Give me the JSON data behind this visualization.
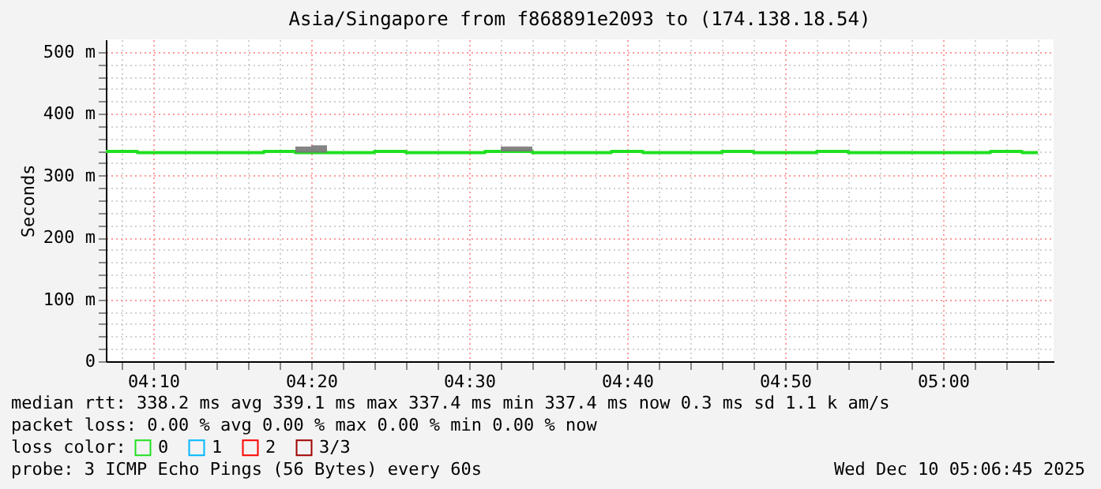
{
  "chart_data": {
    "type": "step",
    "title": "Asia/Singapore from f868891e2093 to (174.138.18.54)",
    "ylabel": "Seconds",
    "legend_title": "loss color:",
    "legend": "bottom left",
    "grid": true,
    "xlim": [
      "2025-12-10T04:07",
      "2025-12-10T05:07"
    ],
    "xticks": [
      {
        "value": "2025-12-10T04:08",
        "label": null
      },
      {
        "value": "2025-12-10T04:10",
        "label": "04:10"
      },
      {
        "value": "2025-12-10T04:12",
        "label": null
      },
      {
        "value": "2025-12-10T04:14",
        "label": null
      },
      {
        "value": "2025-12-10T04:16",
        "label": null
      },
      {
        "value": "2025-12-10T04:18",
        "label": null
      },
      {
        "value": "2025-12-10T04:20",
        "label": "04:20"
      },
      {
        "value": "2025-12-10T04:22",
        "label": null
      },
      {
        "value": "2025-12-10T04:24",
        "label": null
      },
      {
        "value": "2025-12-10T04:26",
        "label": null
      },
      {
        "value": "2025-12-10T04:28",
        "label": null
      },
      {
        "value": "2025-12-10T04:30",
        "label": "04:30"
      },
      {
        "value": "2025-12-10T04:32",
        "label": null
      },
      {
        "value": "2025-12-10T04:34",
        "label": null
      },
      {
        "value": "2025-12-10T04:36",
        "label": null
      },
      {
        "value": "2025-12-10T04:38",
        "label": null
      },
      {
        "value": "2025-12-10T04:40",
        "label": "04:40"
      },
      {
        "value": "2025-12-10T04:42",
        "label": null
      },
      {
        "value": "2025-12-10T04:44",
        "label": null
      },
      {
        "value": "2025-12-10T04:46",
        "label": null
      },
      {
        "value": "2025-12-10T04:48",
        "label": null
      },
      {
        "value": "2025-12-10T04:50",
        "label": "04:50"
      },
      {
        "value": "2025-12-10T04:52",
        "label": null
      },
      {
        "value": "2025-12-10T04:54",
        "label": null
      },
      {
        "value": "2025-12-10T04:56",
        "label": null
      },
      {
        "value": "2025-12-10T04:58",
        "label": null
      },
      {
        "value": "2025-12-10T05:00",
        "label": "05:00"
      },
      {
        "value": "2025-12-10T05:02",
        "label": null
      },
      {
        "value": "2025-12-10T05:04",
        "label": null
      },
      {
        "value": "2025-12-10T05:06",
        "label": null
      }
    ],
    "ylim": [
      0,
      520
    ],
    "yticks": [
      0,
      {
        "value": 20,
        "label": null
      },
      {
        "value": 40,
        "label": null
      },
      {
        "value": 60,
        "label": null
      },
      {
        "value": 80,
        "label": null
      },
      {
        "value": 100,
        "label": "100 m"
      },
      {
        "value": 120,
        "label": null
      },
      {
        "value": 140,
        "label": null
      },
      {
        "value": 160,
        "label": null
      },
      {
        "value": 180,
        "label": null
      },
      {
        "value": 200,
        "label": "200 m"
      },
      {
        "value": 220,
        "label": null
      },
      {
        "value": 240,
        "label": null
      },
      {
        "value": 260,
        "label": null
      },
      {
        "value": 280,
        "label": null
      },
      {
        "value": 300,
        "label": "300 m"
      },
      {
        "value": 320,
        "label": null
      },
      {
        "value": 340,
        "label": null
      },
      {
        "value": 360,
        "label": null
      },
      {
        "value": 380,
        "label": null
      },
      {
        "value": 400,
        "label": "400 m"
      },
      {
        "value": 420,
        "label": null
      },
      {
        "value": 440,
        "label": null
      },
      {
        "value": 460,
        "label": null
      },
      {
        "value": 480,
        "label": null
      },
      {
        "value": 500,
        "label": "500 m"
      }
    ],
    "series": [
      {
        "name": "0",
        "color": "#20e020",
        "x": [
          "2025-12-10T04:07",
          "2025-12-10T04:09",
          "2025-12-10T04:17",
          "2025-12-10T04:19",
          "2025-12-10T04:20",
          "2025-12-10T04:21",
          "2025-12-10T04:24",
          "2025-12-10T04:26",
          "2025-12-10T04:31",
          "2025-12-10T04:32",
          "2025-12-10T04:34",
          "2025-12-10T04:39",
          "2025-12-10T04:41",
          "2025-12-10T04:46",
          "2025-12-10T04:48",
          "2025-12-10T04:52",
          "2025-12-10T04:54",
          "2025-12-10T05:03",
          "2025-12-10T05:05",
          "2025-12-10T05:06"
        ],
        "values": [
          339,
          337,
          339,
          337,
          337,
          337,
          339,
          337,
          339,
          339,
          337,
          339,
          337,
          339,
          337,
          339,
          337,
          339,
          337,
          337
        ],
        "lower": [
          339,
          337,
          339,
          337,
          337,
          337,
          339,
          337,
          339,
          339,
          337,
          339,
          337,
          339,
          337,
          339,
          337,
          339,
          337,
          337
        ],
        "upper": [
          339,
          337,
          339,
          347,
          349,
          337,
          339,
          337,
          339,
          347,
          337,
          339,
          337,
          339,
          337,
          339,
          337,
          339,
          337,
          337
        ]
      },
      {
        "name": "1",
        "color": "#00b8ff"
      },
      {
        "name": "2",
        "color": "#ff0000"
      },
      {
        "name": "3/3",
        "color": "#a00000"
      }
    ],
    "annotations": [
      "median rtt:  338.2 ms avg  339.1 ms max  337.4 ms min  337.4 ms now  0.3 ms sd  1.1 k am/s",
      "packet loss: 0.00 % avg  0.00 % max  0.00 % min  0.00 % now",
      "probe:       3 ICMP Echo Pings (56 Bytes) every 60s",
      "Wed Dec 10 05:06:45 2025"
    ]
  }
}
